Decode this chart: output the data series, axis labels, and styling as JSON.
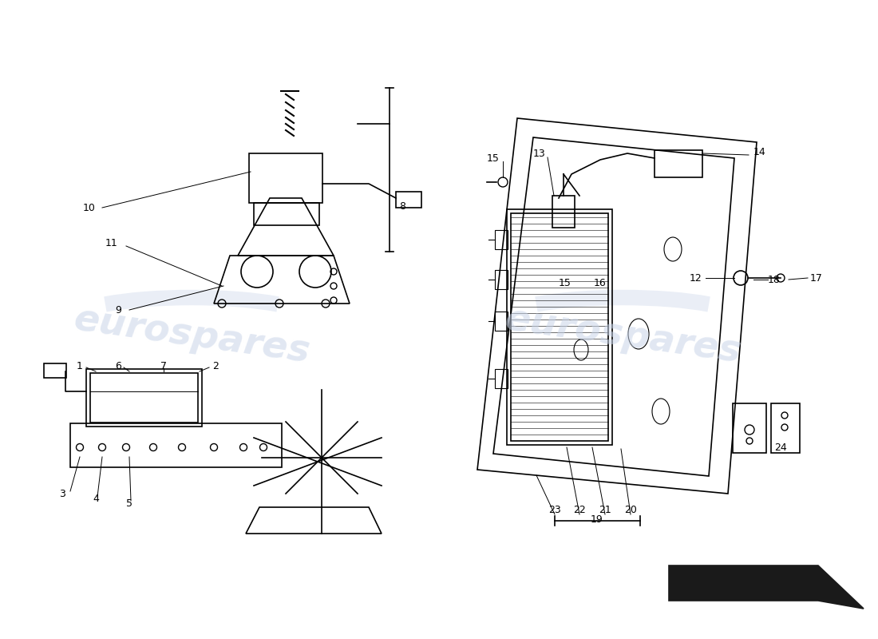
{
  "bg": "#ffffff",
  "lc": "#000000",
  "wc": "#c8d4e8",
  "lw": 1.2,
  "watermark": "eurospares",
  "arrow_fill": "#1a1a1a"
}
